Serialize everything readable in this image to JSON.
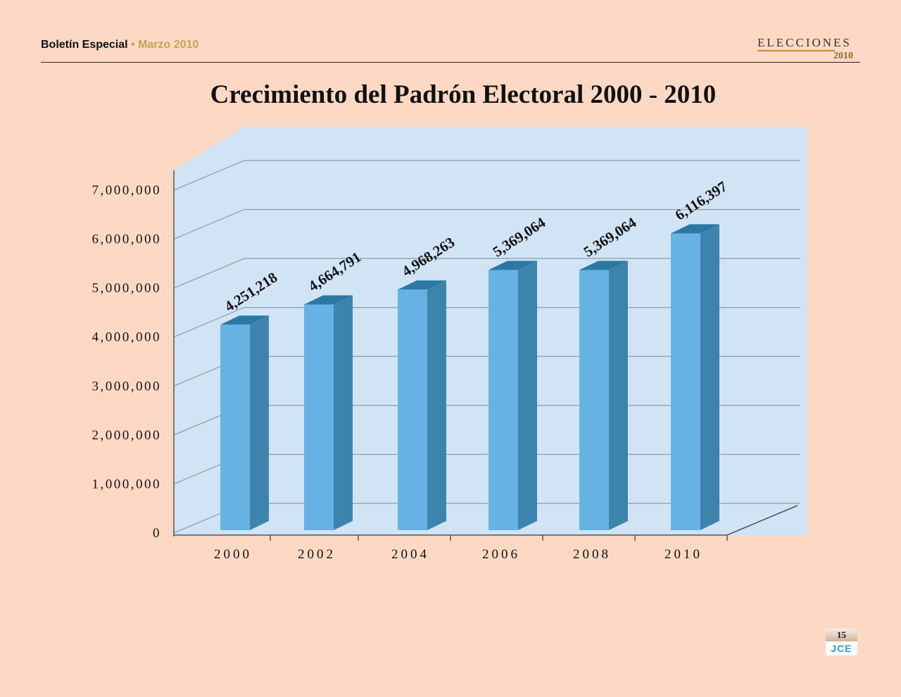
{
  "header": {
    "publication": "Boletín Especial",
    "separator": " • ",
    "date": "Marzo 2010",
    "brand": "ELECCIONES",
    "brand_year": "2010"
  },
  "footer": {
    "page_number": "15",
    "logo": "JCE"
  },
  "chart_data": {
    "type": "bar",
    "style": "3d-column",
    "title": "Crecimiento del Padrón Electoral  2000 - 2010",
    "xlabel": "",
    "ylabel": "",
    "categories": [
      "2000",
      "2002",
      "2004",
      "2006",
      "2008",
      "2010"
    ],
    "values": [
      4251218,
      4664791,
      4968263,
      5369064,
      5369064,
      6116397
    ],
    "data_labels": [
      "4,251,218",
      "4,664,791",
      "4,968,263",
      "5,369,064",
      "5,369,064",
      "6,116,397"
    ],
    "ylim": [
      0,
      7000000
    ],
    "yticks": [
      "0",
      "1,000,000",
      "2,000,000",
      "3,000,000",
      "4,000,000",
      "5,000,000",
      "6,000,000",
      "7,000,000"
    ],
    "grid": true,
    "legend": "none",
    "colors": {
      "bar_front": "#66b3e3",
      "bar_side": "#3d84ad",
      "bar_top": "#2a78a3",
      "wall": "#d1e4f5"
    }
  }
}
